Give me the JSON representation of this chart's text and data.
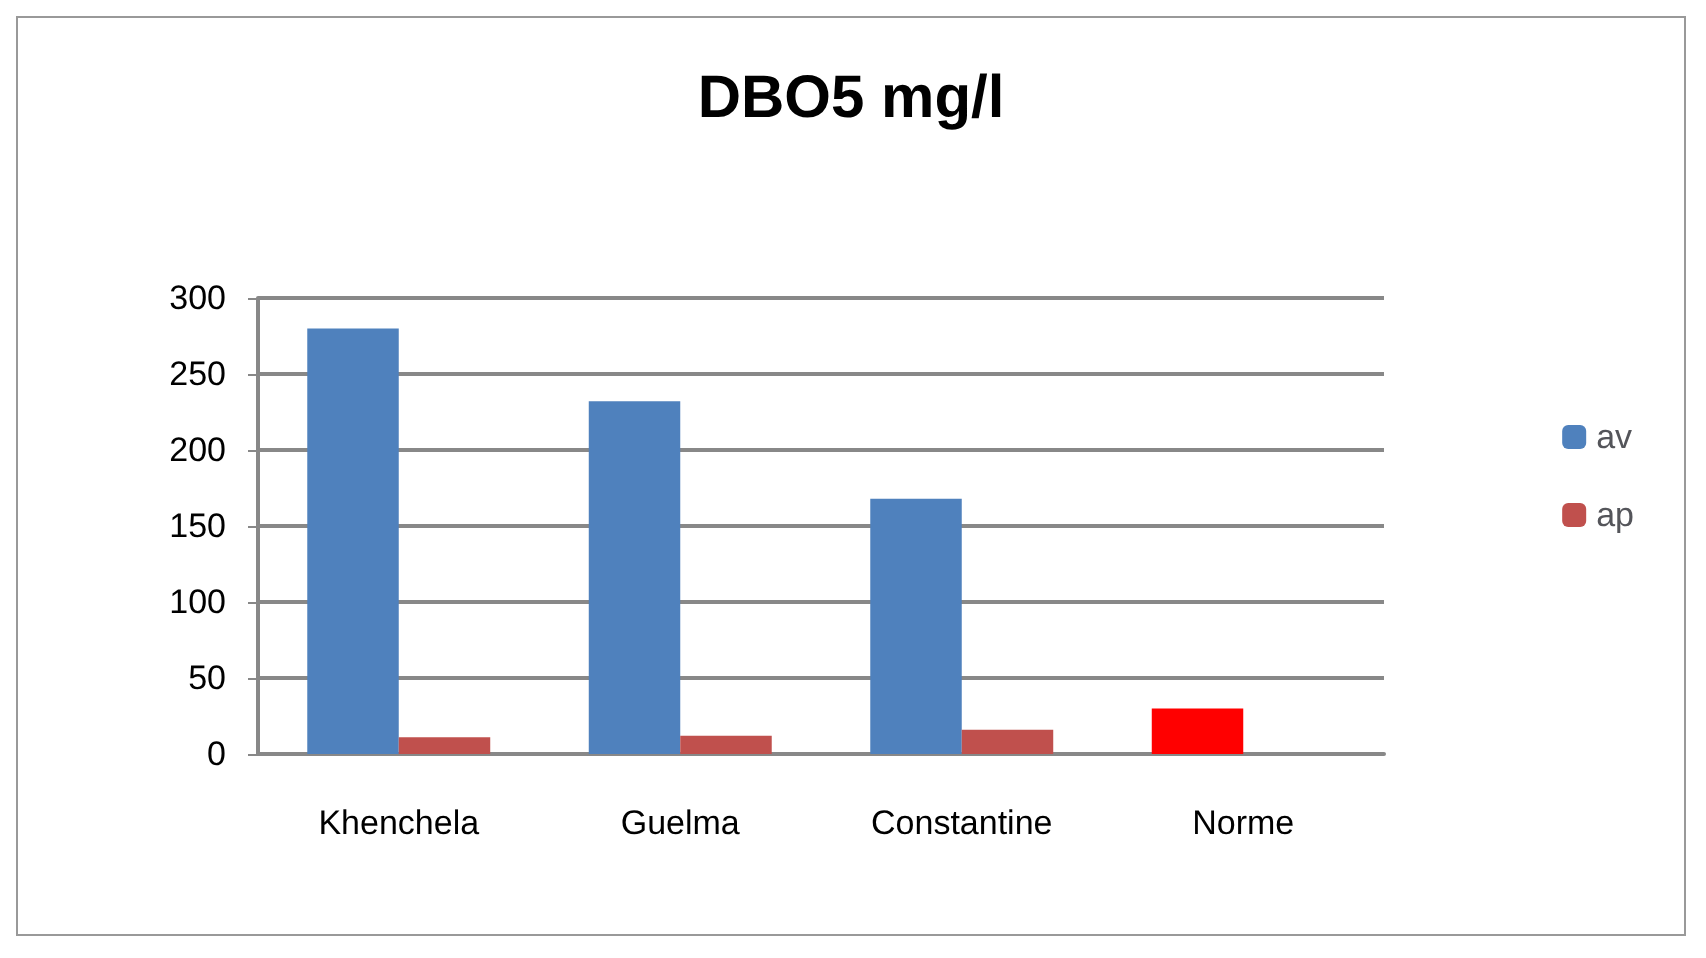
{
  "chart_data": {
    "type": "bar",
    "title": "DBO5 mg/l",
    "categories": [
      "Khenchela",
      "Guelma",
      "Constantine",
      "Norme"
    ],
    "series": [
      {
        "name": "av",
        "color": "#4f81bd",
        "colors": [
          "#4f81bd",
          "#4f81bd",
          "#4f81bd",
          "#ff0000"
        ],
        "values": [
          280,
          232,
          168,
          30
        ]
      },
      {
        "name": "ap",
        "color": "#c0504d",
        "values": [
          11,
          12,
          16,
          null
        ]
      }
    ],
    "ylim": [
      0,
      300
    ],
    "yticks": [
      0,
      50,
      100,
      150,
      200,
      250,
      300
    ],
    "grid": "y",
    "legend": "right"
  }
}
